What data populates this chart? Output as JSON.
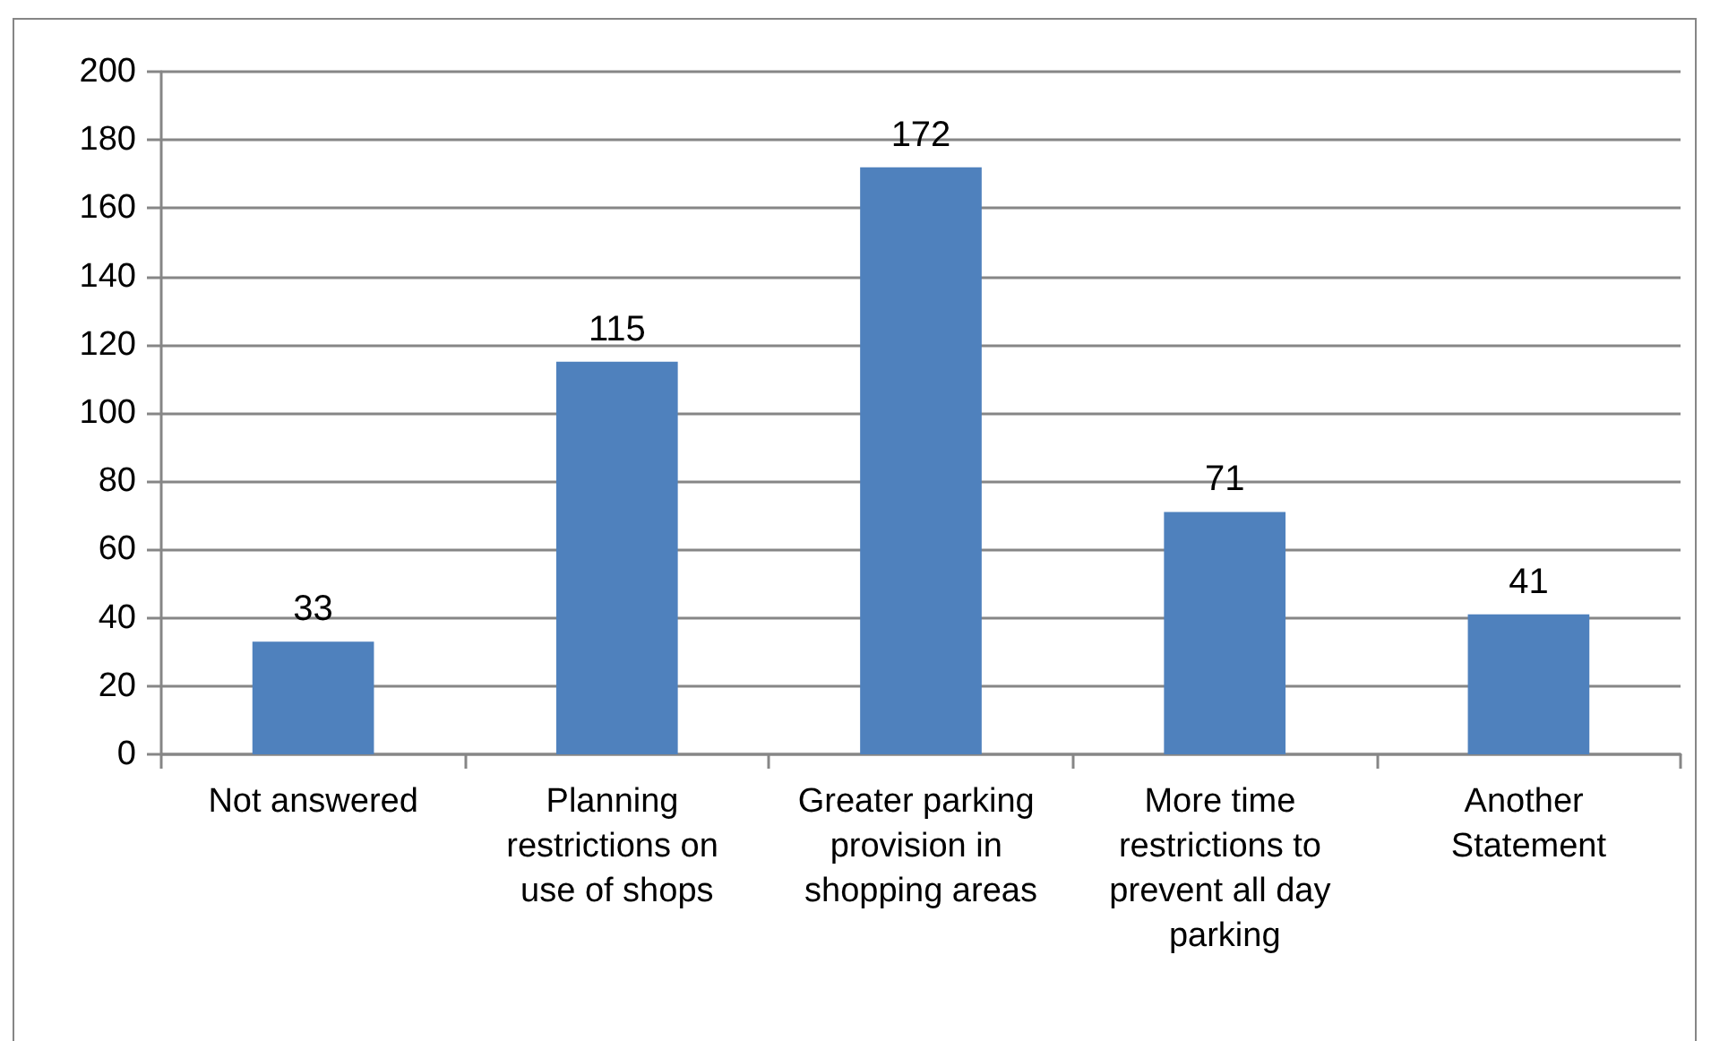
{
  "chart_data": {
    "type": "bar",
    "categories": [
      "Not answered",
      "Planning restrictions on use of shops",
      "Greater parking provision in shopping areas",
      "More time restrictions to prevent all day parking",
      "Another Statement"
    ],
    "values": [
      33,
      115,
      172,
      71,
      41
    ],
    "color": "#4f81bd",
    "ylim": [
      0,
      200
    ],
    "yticks": [
      0,
      20,
      40,
      60,
      80,
      100,
      120,
      140,
      160,
      180,
      200
    ],
    "grid": "y",
    "data_labels": true
  }
}
